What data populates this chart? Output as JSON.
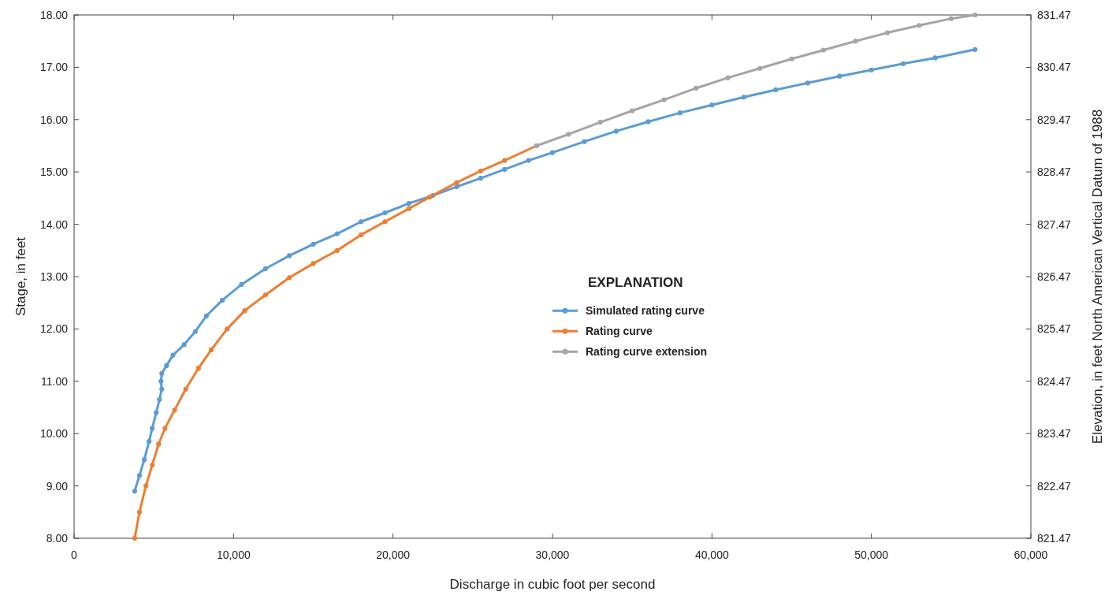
{
  "chart_data": {
    "type": "line",
    "xlabel": "Discharge in cubic foot per second",
    "ylabel": "Stage, in feet",
    "y2label": "Elevation, in feet  North American Vertical Datum of  1988",
    "legend_title": "EXPLANATION",
    "legend": "center",
    "marker": "circle",
    "line_style": "solid",
    "grid": false,
    "xlim": [
      0,
      60000
    ],
    "xticks": [
      {
        "value": 0,
        "label": "0"
      },
      {
        "value": 10000,
        "label": "10,000"
      },
      {
        "value": 20000,
        "label": "20,000"
      },
      {
        "value": 30000,
        "label": "30,000"
      },
      {
        "value": 40000,
        "label": "40,000"
      },
      {
        "value": 50000,
        "label": "50,000"
      },
      {
        "value": 60000,
        "label": "60,000"
      }
    ],
    "ylim": [
      8,
      18
    ],
    "yticks": [
      {
        "value": 8,
        "label": "8.00"
      },
      {
        "value": 9,
        "label": "9.00"
      },
      {
        "value": 10,
        "label": "10.00"
      },
      {
        "value": 11,
        "label": "11.00"
      },
      {
        "value": 12,
        "label": "12.00"
      },
      {
        "value": 13,
        "label": "13.00"
      },
      {
        "value": 14,
        "label": "14.00"
      },
      {
        "value": 15,
        "label": "15.00"
      },
      {
        "value": 16,
        "label": "16.00"
      },
      {
        "value": 17,
        "label": "17.00"
      },
      {
        "value": 18,
        "label": "18.00"
      }
    ],
    "y2lim": [
      821.47,
      831.47
    ],
    "y2ticks": [
      821.47,
      822.47,
      823.47,
      824.47,
      825.47,
      826.47,
      827.47,
      828.47,
      829.47,
      830.47,
      831.47
    ],
    "series": [
      {
        "name": "Simulated rating curve",
        "color": "#5b9bd5",
        "x": [
          3800,
          4100,
          4400,
          4700,
          4900,
          5150,
          5350,
          5500,
          5450,
          5500,
          5800,
          6200,
          6900,
          7600,
          8300,
          9300,
          10500,
          12000,
          13500,
          15000,
          16500,
          18000,
          19500,
          21000,
          22500,
          24000,
          25500,
          27000,
          28500,
          30000,
          32000,
          34000,
          36000,
          38000,
          40000,
          42000,
          44000,
          46000,
          48000,
          50000,
          52000,
          54000,
          56500
        ],
        "values": [
          8.9,
          9.2,
          9.5,
          9.85,
          10.1,
          10.4,
          10.65,
          10.85,
          11.0,
          11.15,
          11.3,
          11.5,
          11.7,
          11.95,
          12.25,
          12.55,
          12.85,
          13.15,
          13.4,
          13.62,
          13.82,
          14.05,
          14.22,
          14.4,
          14.55,
          14.72,
          14.88,
          15.05,
          15.22,
          15.37,
          15.58,
          15.78,
          15.96,
          16.13,
          16.28,
          16.43,
          16.57,
          16.7,
          16.83,
          16.95,
          17.07,
          17.18,
          17.34
        ]
      },
      {
        "name": "Rating curve",
        "color": "#ed7d31",
        "x": [
          3800,
          4100,
          4500,
          4900,
          5300,
          5700,
          6300,
          7000,
          7800,
          8600,
          9600,
          10700,
          12000,
          13500,
          15000,
          16500,
          18000,
          19500,
          21000,
          22300,
          24000,
          25500,
          27000,
          29000
        ],
        "values": [
          8.0,
          8.5,
          9.0,
          9.4,
          9.8,
          10.1,
          10.45,
          10.85,
          11.25,
          11.6,
          12.0,
          12.35,
          12.65,
          12.98,
          13.25,
          13.5,
          13.8,
          14.05,
          14.3,
          14.52,
          14.8,
          15.02,
          15.22,
          15.5
        ]
      },
      {
        "name": "Rating curve extension",
        "color": "#a5a5a5",
        "x": [
          29000,
          31000,
          33000,
          35000,
          37000,
          39000,
          41000,
          43000,
          45000,
          47000,
          49000,
          51000,
          53000,
          55000,
          56500
        ],
        "values": [
          15.5,
          15.72,
          15.95,
          16.17,
          16.38,
          16.6,
          16.8,
          16.98,
          17.16,
          17.33,
          17.5,
          17.66,
          17.8,
          17.93,
          18.0
        ]
      }
    ]
  }
}
